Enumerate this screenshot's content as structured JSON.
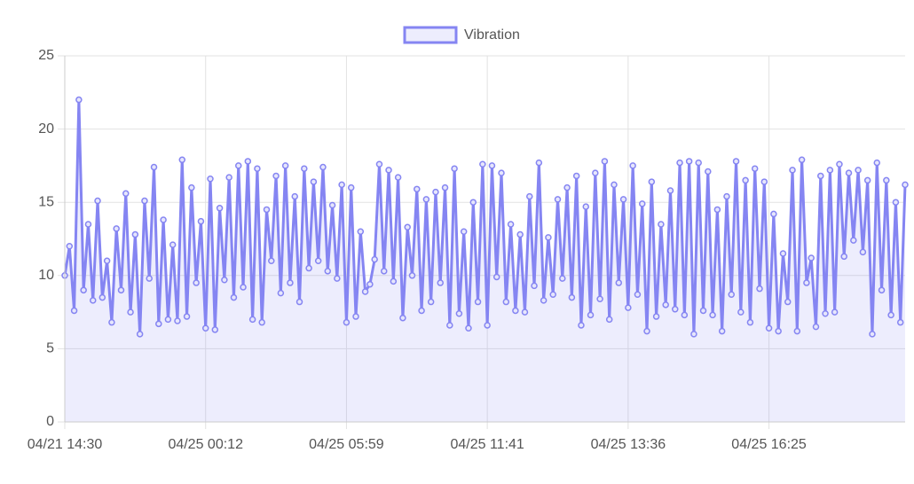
{
  "chart_data": {
    "type": "line",
    "categories": [
      "04/21 14:30",
      null,
      null,
      null,
      null,
      null,
      null,
      null,
      null,
      null,
      null,
      null,
      null,
      null,
      null,
      null,
      null,
      null,
      null,
      null,
      null,
      null,
      null,
      null,
      null,
      null,
      null,
      null,
      null,
      null,
      "04/25 00:12",
      null,
      null,
      null,
      null,
      null,
      null,
      null,
      null,
      null,
      null,
      null,
      null,
      null,
      null,
      null,
      null,
      null,
      null,
      null,
      null,
      null,
      null,
      null,
      null,
      null,
      null,
      null,
      null,
      null,
      "04/25 05:59",
      null,
      null,
      null,
      null,
      null,
      null,
      null,
      null,
      null,
      null,
      null,
      null,
      null,
      null,
      null,
      null,
      null,
      null,
      null,
      null,
      null,
      null,
      null,
      null,
      null,
      null,
      null,
      null,
      null,
      "04/25 11:41",
      null,
      null,
      null,
      null,
      null,
      null,
      null,
      null,
      null,
      null,
      null,
      null,
      null,
      null,
      null,
      null,
      null,
      null,
      null,
      null,
      null,
      null,
      null,
      null,
      null,
      null,
      null,
      null,
      null,
      "04/25 13:36",
      null,
      null,
      null,
      null,
      null,
      null,
      null,
      null,
      null,
      null,
      null,
      null,
      null,
      null,
      null,
      null,
      null,
      null,
      null,
      null,
      null,
      null,
      null,
      null,
      null,
      null,
      null,
      null,
      null,
      "04/25 16:25",
      null,
      null,
      null,
      null,
      null,
      null,
      null,
      null,
      null,
      null,
      null,
      null,
      null,
      null,
      null,
      null,
      null,
      null,
      null,
      null,
      null,
      null,
      null,
      null,
      null,
      null,
      null,
      null,
      null
    ],
    "series": [
      {
        "name": "Vibration",
        "color": "#8585f2",
        "fill": "rgba(133,133,242,0.15)",
        "values": [
          10,
          12,
          7.6,
          22,
          9,
          13.5,
          8.3,
          15.1,
          8.5,
          11,
          6.8,
          13.2,
          9,
          15.6,
          7.5,
          12.8,
          6,
          15.1,
          9.8,
          17.4,
          6.7,
          13.8,
          7,
          12.1,
          6.9,
          17.9,
          7.2,
          16,
          9.5,
          13.7,
          6.4,
          16.6,
          6.3,
          14.6,
          9.7,
          16.7,
          8.5,
          17.5,
          9.2,
          17.8,
          7,
          17.3,
          6.8,
          14.5,
          11,
          16.8,
          8.8,
          17.5,
          9.5,
          15.4,
          8.2,
          17.3,
          10.5,
          16.4,
          11,
          17.4,
          10.3,
          14.8,
          9.8,
          16.2,
          6.8,
          16,
          7.2,
          13,
          8.9,
          9.4,
          11.1,
          17.6,
          10.3,
          17.2,
          9.6,
          16.7,
          7.1,
          13.3,
          10,
          15.9,
          7.6,
          15.2,
          8.2,
          15.7,
          9.5,
          16,
          6.6,
          17.3,
          7.4,
          13,
          6.4,
          15,
          8.2,
          17.6,
          6.6,
          17.5,
          9.9,
          17,
          8.2,
          13.5,
          7.6,
          12.8,
          7.5,
          15.4,
          9.3,
          17.7,
          8.3,
          12.6,
          8.7,
          15.2,
          9.8,
          16,
          8.5,
          16.8,
          6.6,
          14.7,
          7.3,
          17,
          8.4,
          17.8,
          7,
          16.2,
          9.5,
          15.2,
          7.8,
          17.5,
          8.7,
          14.9,
          6.2,
          16.4,
          7.2,
          13.5,
          8,
          15.8,
          7.7,
          17.7,
          7.3,
          17.8,
          6,
          17.7,
          7.6,
          17.1,
          7.3,
          14.5,
          6.2,
          15.4,
          8.7,
          17.8,
          7.5,
          16.5,
          6.8,
          17.3,
          9.1,
          16.4,
          6.4,
          14.2,
          6.2,
          11.5,
          8.2,
          17.2,
          6.2,
          17.9,
          9.5,
          11.2,
          6.5,
          16.8,
          7.4,
          17.2,
          7.5,
          17.6,
          11.3,
          17,
          12.4,
          17.2,
          11.6,
          16.5,
          6,
          17.7,
          9,
          16.5,
          7.3,
          15,
          6.8,
          16.2
        ]
      }
    ],
    "ylim": [
      0,
      25
    ],
    "yticks": [
      0,
      5,
      10,
      15,
      20,
      25
    ],
    "grid": true,
    "legend": "top"
  }
}
